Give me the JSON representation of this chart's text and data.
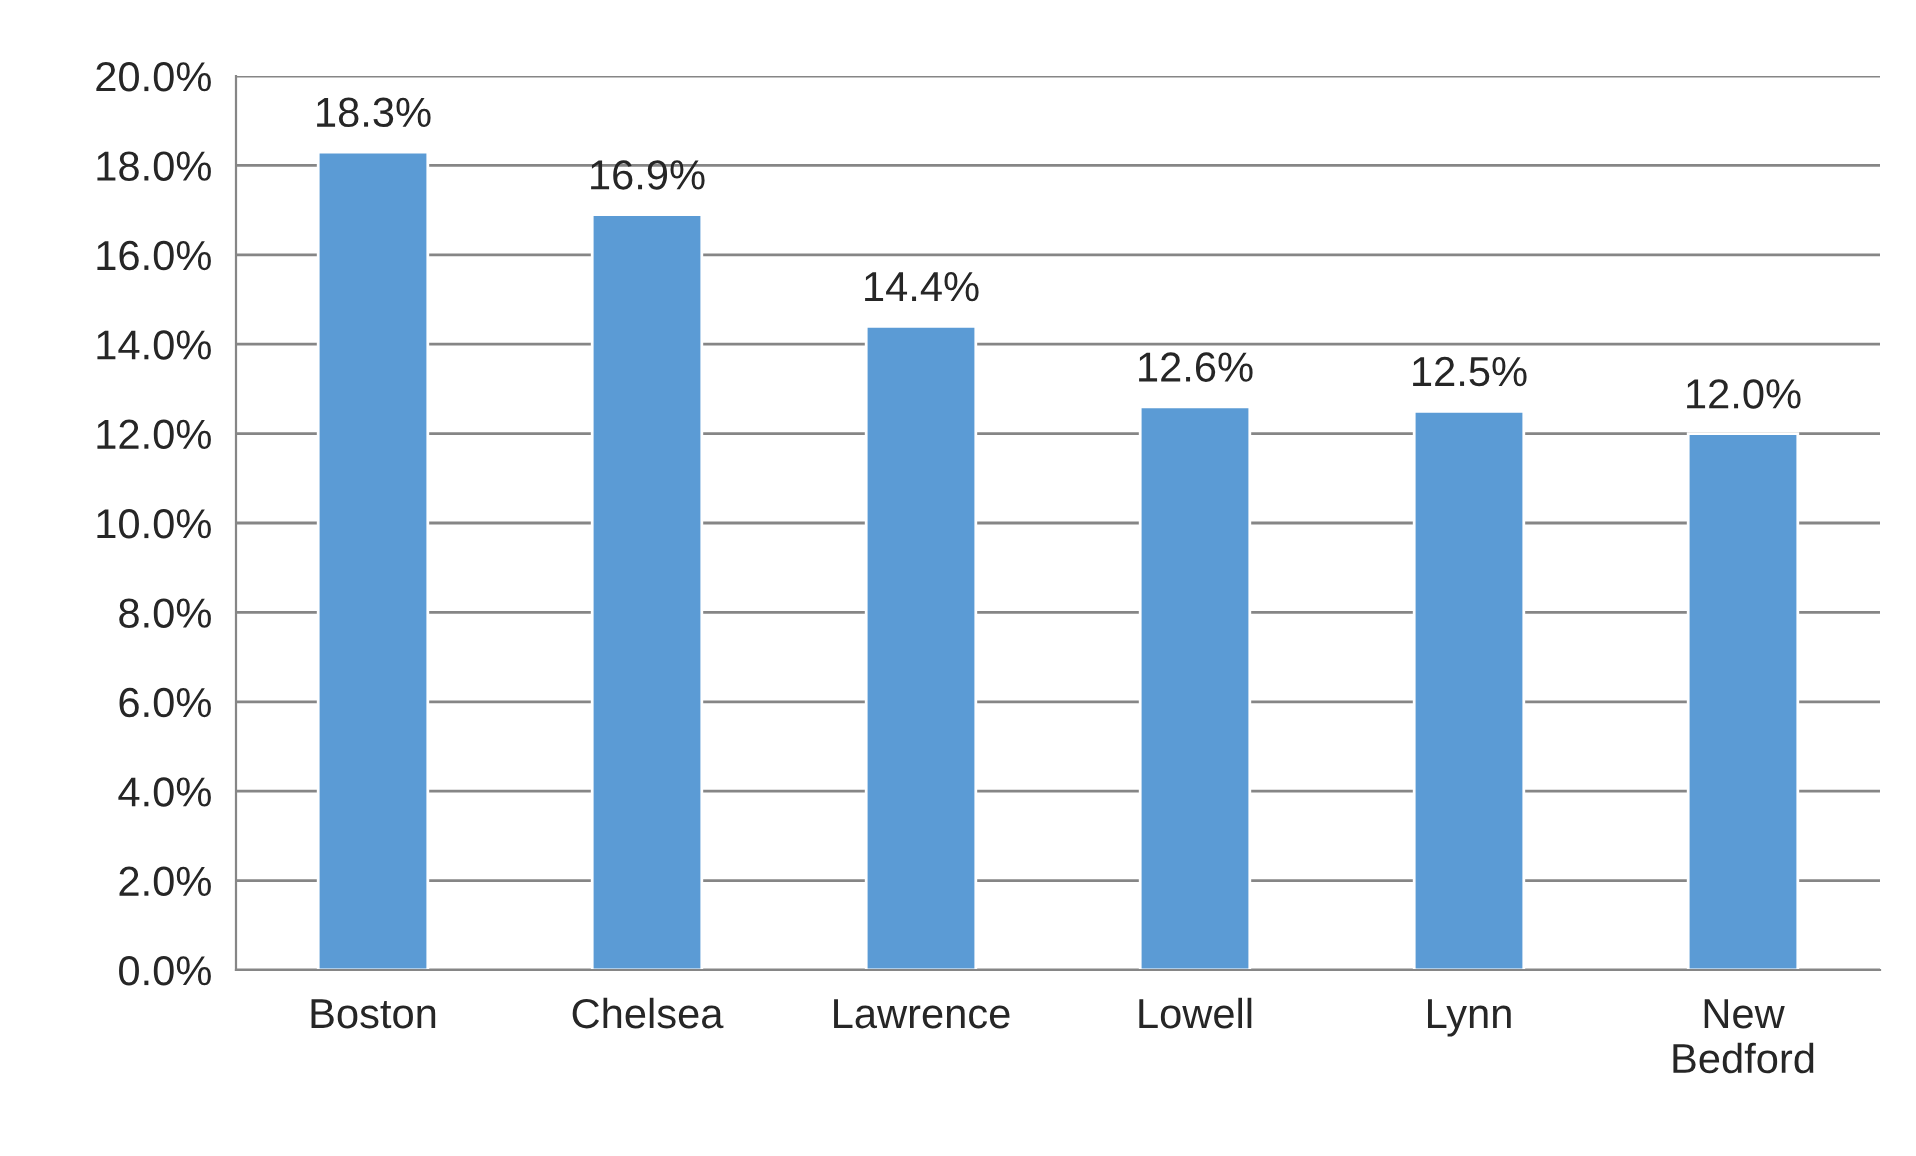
{
  "chart_data": {
    "type": "bar",
    "categories": [
      "Boston",
      "Chelsea",
      "Lawrence",
      "Lowell",
      "Lynn",
      "New\nBedford"
    ],
    "values": [
      18.3,
      16.9,
      14.4,
      12.6,
      12.5,
      12.0
    ],
    "value_labels": [
      "18.3%",
      "16.9%",
      "14.4%",
      "12.6%",
      "12.5%",
      "12.0%"
    ],
    "color": "#5b9bd5",
    "ylim": [
      0,
      20
    ],
    "yticks": [
      {
        "value": 0,
        "label": "0.0%"
      },
      {
        "value": 2,
        "label": "2.0%"
      },
      {
        "value": 4,
        "label": "4.0%"
      },
      {
        "value": 6,
        "label": "6.0%"
      },
      {
        "value": 8,
        "label": "8.0%"
      },
      {
        "value": 10,
        "label": "10.0%"
      },
      {
        "value": 12,
        "label": "12.0%"
      },
      {
        "value": 14,
        "label": "14.0%"
      },
      {
        "value": 16,
        "label": "16.0%"
      },
      {
        "value": 18,
        "label": "18.0%"
      },
      {
        "value": 20,
        "label": "20.0%"
      }
    ],
    "grid": "y",
    "legend": false
  }
}
